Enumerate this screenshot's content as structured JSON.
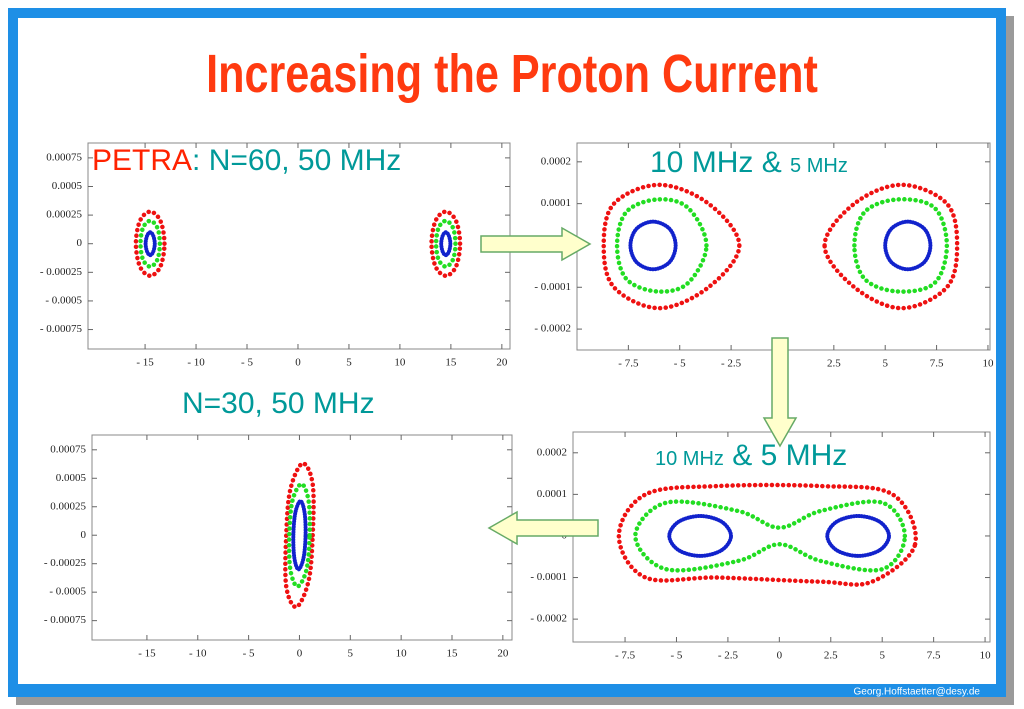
{
  "title": "Increasing the Proton Current",
  "footer": "Georg.Hoffstaetter@desy.de",
  "chart_data": [
    {
      "type": "line",
      "annotation": [
        {
          "text": "PETRA",
          "color": "#ff2200"
        },
        {
          "text": ": N=60, 50 MHz",
          "color": "#009999"
        }
      ],
      "xlim": [
        -20.6,
        20.8
      ],
      "xticks": [
        {
          "value": -15,
          "label": "- 15"
        },
        {
          "value": -10,
          "label": "- 10"
        },
        {
          "value": -5,
          "label": "- 5"
        },
        0,
        5,
        10,
        15,
        20
      ],
      "ylim": [
        -0.00092,
        0.00088
      ],
      "yticks": [
        0.00075,
        0.0005,
        0.00025,
        0,
        {
          "value": -0.00025,
          "label": "- 0.00025"
        },
        {
          "value": -0.0005,
          "label": "- 0.0005"
        },
        {
          "value": -0.00075,
          "label": "- 0.00075"
        }
      ],
      "series": [
        {
          "color": "#ee1111",
          "x": [
            15.9,
            15.5,
            14.5,
            13.5,
            13.1,
            13.5,
            14.5,
            15.5
          ],
          "values": [
            0,
            0.0002,
            0.00028,
            0.0002,
            0,
            -0.0002,
            -0.00028,
            -0.0002
          ]
        },
        {
          "color": "#22dd22",
          "x": [
            15.45,
            15.2,
            14.5,
            13.8,
            13.55,
            13.8,
            14.5,
            15.2
          ],
          "values": [
            0,
            0.00014,
            0.0002,
            0.00014,
            0,
            -0.00014,
            -0.0002,
            -0.00014
          ]
        },
        {
          "color": "#1122cc",
          "x": [
            14.95,
            14.8,
            14.5,
            14.2,
            14.05,
            14.2,
            14.5,
            14.8
          ],
          "values": [
            0,
            7e-05,
            0.0001,
            7e-05,
            0,
            -7e-05,
            -0.0001,
            -7e-05
          ]
        },
        {
          "color": "#ee1111",
          "x": [
            -13.1,
            -13.5,
            -14.5,
            -15.5,
            -15.9,
            -15.5,
            -14.5,
            -13.5
          ],
          "values": [
            0,
            0.0002,
            0.00028,
            0.0002,
            0,
            -0.0002,
            -0.00028,
            -0.0002
          ]
        },
        {
          "color": "#22dd22",
          "x": [
            -13.55,
            -13.8,
            -14.5,
            -15.2,
            -15.45,
            -15.2,
            -14.5,
            -13.8
          ],
          "values": [
            0,
            0.00014,
            0.0002,
            0.00014,
            0,
            -0.00014,
            -0.0002,
            -0.00014
          ]
        },
        {
          "color": "#1122cc",
          "x": [
            -14.05,
            -14.2,
            -14.5,
            -14.8,
            -14.95,
            -14.8,
            -14.5,
            -14.2
          ],
          "values": [
            0,
            7e-05,
            0.0001,
            7e-05,
            0,
            -7e-05,
            -0.0001,
            -7e-05
          ]
        }
      ]
    },
    {
      "type": "line",
      "annotation": [
        {
          "text": "10 MHz & ",
          "color": "#009999"
        },
        {
          "text": "5 MHz",
          "color": "#009999"
        }
      ],
      "xlim": [
        -10,
        10.1
      ],
      "xticks": [
        {
          "value": -7.5,
          "label": "- 7.5"
        },
        {
          "value": -5,
          "label": "- 5"
        },
        {
          "value": -2.5,
          "label": "- 2.5"
        },
        2.5,
        5,
        7.5,
        10
      ],
      "ylim": [
        -0.00025,
        0.000245
      ],
      "yticks": [
        0.0002,
        0.0001,
        {
          "value": -0.0001,
          "label": "- 0.0001"
        },
        {
          "value": -0.0002,
          "label": "- 0.0002"
        }
      ],
      "series": [
        {
          "color": "#ee1111",
          "x": [
            -2.1,
            -3.6,
            -6.0,
            -8.2,
            -8.7,
            -8.2,
            -6.0,
            -3.6
          ],
          "values": [
            0,
            0.0001,
            0.000145,
            0.0001,
            0,
            -0.0001,
            -0.00015,
            -0.0001
          ]
        },
        {
          "color": "#22dd22",
          "x": [
            -3.7,
            -4.6,
            -6.1,
            -7.6,
            -8.05,
            -7.6,
            -6.1,
            -4.6
          ],
          "values": [
            0,
            9e-05,
            0.00011,
            8e-05,
            0,
            -8e-05,
            -0.00011,
            -9e-05
          ]
        },
        {
          "color": "#1122cc",
          "x": [
            -5.2,
            -5.5,
            -6.3,
            -7.1,
            -7.4,
            -7.1,
            -6.3,
            -5.5
          ],
          "values": [
            0,
            4e-05,
            5.7e-05,
            4e-05,
            0,
            -4e-05,
            -5.7e-05,
            -4e-05
          ]
        },
        {
          "color": "#ee1111",
          "x": [
            2.05,
            3.5,
            5.8,
            8.0,
            8.5,
            8.0,
            5.8,
            3.5
          ],
          "values": [
            0,
            0.0001,
            0.000145,
            0.0001,
            0,
            -0.0001,
            -0.00015,
            -0.0001
          ]
        },
        {
          "color": "#22dd22",
          "x": [
            3.5,
            4.0,
            5.6,
            7.4,
            8.0,
            7.4,
            5.6,
            4.0
          ],
          "values": [
            0,
            8e-05,
            0.00011,
            9e-05,
            0,
            -9e-05,
            -0.00011,
            -8e-05
          ]
        },
        {
          "color": "#1122cc",
          "x": [
            7.2,
            6.9,
            6.1,
            5.3,
            5.0,
            5.3,
            6.1,
            6.9
          ],
          "values": [
            0,
            4e-05,
            5.7e-05,
            4e-05,
            0,
            -4e-05,
            -5.7e-05,
            -4e-05
          ]
        }
      ]
    },
    {
      "type": "line",
      "annotation": [
        {
          "text": "N=30, 50 MHz",
          "color": "#009999"
        }
      ],
      "xlim": [
        -20.4,
        20.9
      ],
      "xticks": [
        {
          "value": -15,
          "label": "- 15"
        },
        {
          "value": -10,
          "label": "- 10"
        },
        {
          "value": -5,
          "label": "- 5"
        },
        0,
        5,
        10,
        15,
        20
      ],
      "ylim": [
        -0.00092,
        0.00088
      ],
      "yticks": [
        0.00075,
        0.0005,
        0.00025,
        0,
        {
          "value": -0.00025,
          "label": "- 0.00025"
        },
        {
          "value": -0.0005,
          "label": "- 0.0005"
        },
        {
          "value": -0.00075,
          "label": "- 0.00075"
        }
      ],
      "series": [
        {
          "color": "#ee1111",
          "x": [
            1.3,
            1.3,
            0.3,
            -0.9,
            -1.3,
            -1.3,
            -0.3,
            0.9
          ],
          "values": [
            0,
            0.00045,
            0.00063,
            0.0004,
            0,
            -0.00045,
            -0.00063,
            -0.0004
          ]
        },
        {
          "color": "#22dd22",
          "x": [
            1.0,
            0.9,
            0.2,
            -0.7,
            -1.0,
            -0.9,
            -0.2,
            0.7
          ],
          "values": [
            0,
            0.0003,
            0.00045,
            0.0003,
            0,
            -0.0003,
            -0.00045,
            -0.0003
          ]
        },
        {
          "color": "#1122cc",
          "x": [
            0.6,
            0.5,
            0.1,
            -0.4,
            -0.6,
            -0.5,
            -0.1,
            0.4
          ],
          "values": [
            0,
            0.0002,
            0.0003,
            0.0002,
            0,
            -0.0002,
            -0.0003,
            -0.0002
          ]
        }
      ]
    },
    {
      "type": "line",
      "annotation": [
        {
          "text": "10 MHz",
          "color": "#009999"
        },
        {
          "text": " & 5 MHz",
          "color": "#009999"
        }
      ],
      "xlim": [
        -10.03,
        10.24
      ],
      "xticks": [
        {
          "value": -7.5,
          "label": "- 7.5"
        },
        {
          "value": -5,
          "label": "- 5"
        },
        {
          "value": -2.5,
          "label": "- 2.5"
        },
        0,
        2.5,
        5,
        7.5,
        10
      ],
      "ylim": [
        -0.000255,
        0.00025
      ],
      "yticks": [
        0.0002,
        0.0001,
        0,
        {
          "value": -0.0001,
          "label": "- 0.0001"
        },
        {
          "value": -0.0002,
          "label": "- 0.0002"
        }
      ],
      "series": [
        {
          "color": "#ee1111",
          "x": [
            6.6,
            5.5,
            2,
            -3,
            -6.5,
            -7.8,
            -6.5,
            -3,
            2,
            4.5
          ],
          "values": [
            -2e-05,
            0.0001,
            0.00012,
            0.00012,
            0.0001,
            0,
            -0.0001,
            -0.0001,
            -0.00011,
            -0.00011
          ]
        },
        {
          "color": "#22dd22",
          "x": [
            6.1,
            5,
            2,
            0,
            -2,
            -5.5,
            -7,
            -5.5,
            -2,
            0,
            2,
            5
          ],
          "values": [
            0,
            8e-05,
            6e-05,
            2e-05,
            6e-05,
            8e-05,
            0,
            -8e-05,
            -6e-05,
            -2e-05,
            -6e-05,
            -8e-05
          ]
        },
        {
          "color": "#1122cc",
          "x": [
            -2.35,
            -2.8,
            -3.85,
            -4.9,
            -5.35,
            -4.9,
            -3.85,
            -2.8
          ],
          "values": [
            0,
            3.4e-05,
            4.8e-05,
            3.4e-05,
            0,
            -3.4e-05,
            -4.8e-05,
            -3.4e-05
          ]
        },
        {
          "color": "#1122cc",
          "x": [
            5.33,
            4.88,
            3.83,
            2.78,
            2.33,
            2.78,
            3.83,
            4.88
          ],
          "values": [
            0,
            3.4e-05,
            4.8e-05,
            3.4e-05,
            0,
            -3.4e-05,
            -4.8e-05,
            -3.4e-05
          ]
        }
      ]
    }
  ]
}
